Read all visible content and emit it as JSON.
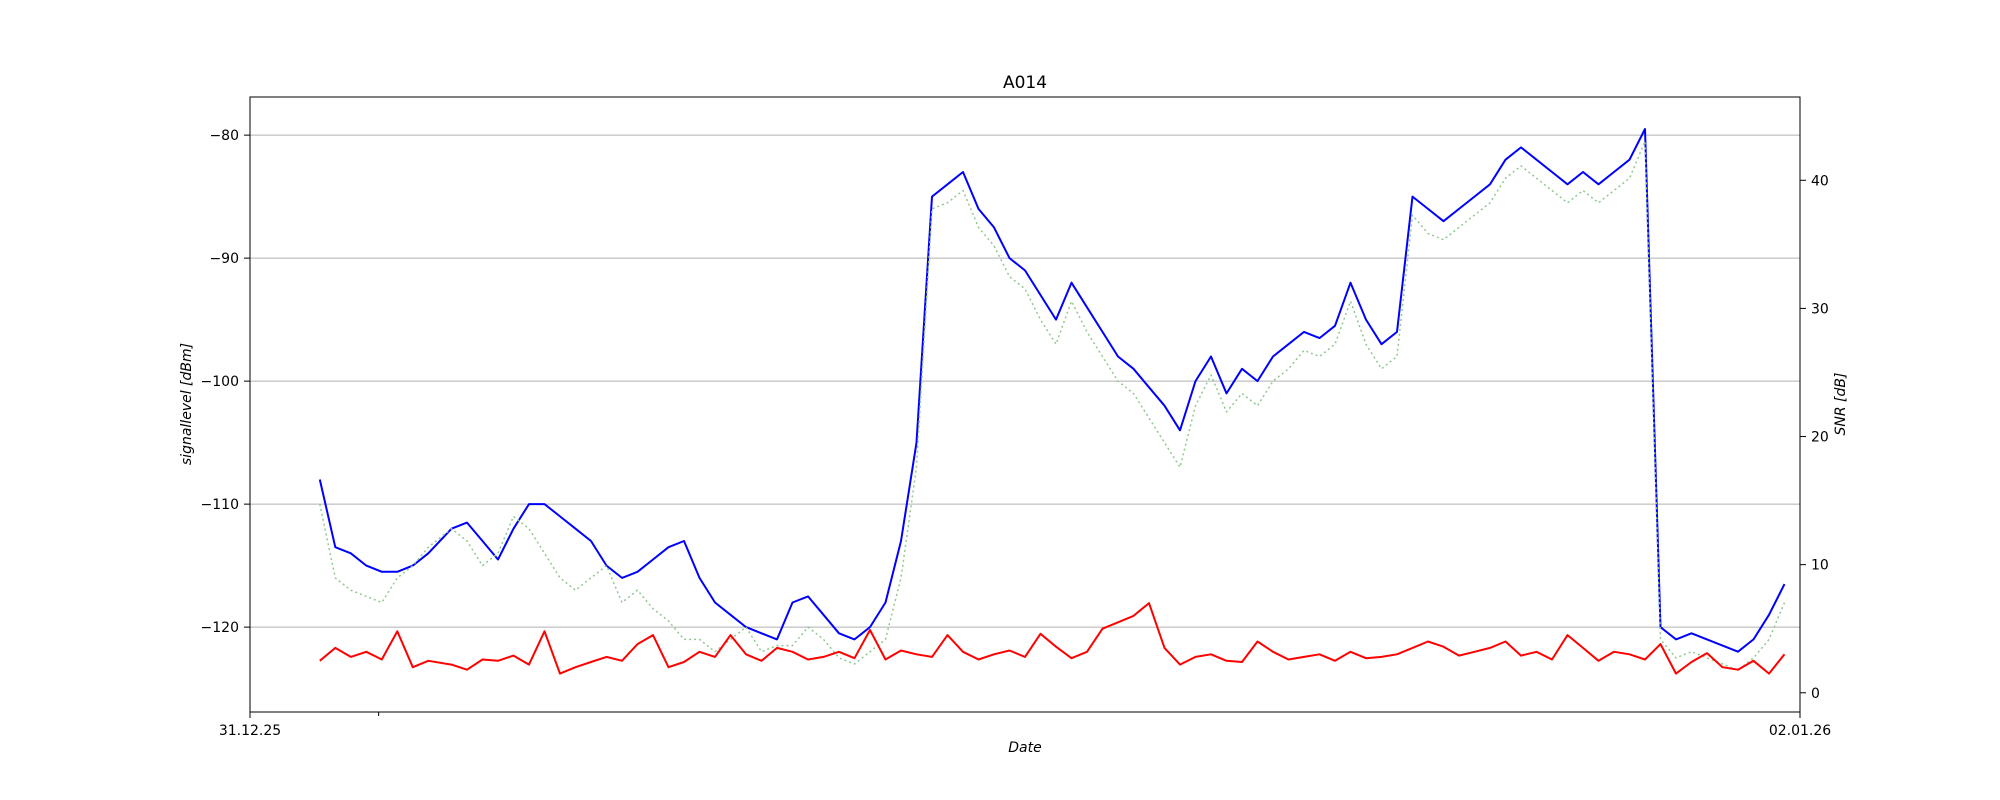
{
  "chart_data": {
    "type": "line",
    "title": "A014",
    "xlabel": "Date",
    "ylabel_left": "signallevel [dBm]",
    "ylabel_right": "SNR [dB]",
    "x_ticks": [
      "31.12.25",
      "02.01.26"
    ],
    "y_left_ticks": [
      -80,
      -90,
      -100,
      -110,
      -120
    ],
    "y_right_ticks": [
      40,
      30,
      20,
      10,
      0
    ],
    "y_left_range": [
      -126.9,
      -76.9
    ],
    "y_right_range": [
      -1.5,
      46.5
    ],
    "x_range": [
      0,
      100
    ],
    "grid": "horizontal (left axis)",
    "series": [
      {
        "axis": "left",
        "color": "#0000ff",
        "style": "solid",
        "x": [
          4.5,
          5.5,
          6.5,
          7.5,
          8.5,
          9.5,
          10.5,
          11.5,
          13,
          14,
          15,
          16,
          17,
          18,
          19,
          20,
          21,
          22,
          23,
          24,
          25,
          26,
          27,
          28,
          29,
          30,
          31,
          32,
          33,
          34,
          35,
          36,
          37,
          38,
          39,
          40,
          41,
          42,
          43,
          44,
          45,
          46,
          47,
          48,
          49,
          50,
          51,
          52,
          53,
          54,
          55,
          56,
          57,
          58,
          59,
          60,
          61,
          62,
          63,
          64,
          65,
          66,
          67,
          68,
          69,
          70,
          71,
          72,
          73,
          74,
          75,
          76,
          77,
          78,
          79,
          80,
          81,
          82,
          83,
          84,
          85,
          86,
          87,
          88,
          89,
          90,
          91,
          92,
          93,
          94,
          95,
          96,
          97,
          98,
          99
        ],
        "y": [
          -108,
          -113.5,
          -114,
          -115,
          -115.5,
          -115.5,
          -115,
          -114,
          -112,
          -111.5,
          -113,
          -114.5,
          -112,
          -110,
          -110,
          -111,
          -112,
          -113,
          -115,
          -116,
          -115.5,
          -114.5,
          -113.5,
          -113,
          -116,
          -118,
          -119,
          -120,
          -120.5,
          -121,
          -118,
          -117.5,
          -119,
          -120.5,
          -121,
          -120,
          -118,
          -113,
          -105,
          -85,
          -84,
          -83,
          -86,
          -87.5,
          -90,
          -91,
          -93,
          -95,
          -92,
          -94,
          -96,
          -98,
          -99,
          -100.5,
          -102,
          -104,
          -100,
          -98,
          -101,
          -99,
          -100,
          -98,
          -97,
          -96,
          -96.5,
          -95.5,
          -92,
          -95,
          -97,
          -96,
          -85,
          -86,
          -87,
          -86,
          -85,
          -84,
          -82,
          -81,
          -82,
          -83,
          -84,
          -83,
          -84,
          -83,
          -82,
          -79.5,
          -120,
          -121,
          -120.5,
          -121,
          -121.5,
          -122,
          -121,
          -119,
          -116.5
        ]
      },
      {
        "axis": "left",
        "color": "#90c890",
        "style": "dotted",
        "x": [
          4.5,
          5.5,
          6.5,
          7.5,
          8.5,
          9.5,
          10.5,
          11.5,
          13,
          14,
          15,
          16,
          17,
          18,
          19,
          20,
          21,
          22,
          23,
          24,
          25,
          26,
          27,
          28,
          29,
          30,
          31,
          32,
          33,
          34,
          35,
          36,
          37,
          38,
          39,
          40,
          41,
          42,
          43,
          44,
          45,
          46,
          47,
          48,
          49,
          50,
          51,
          52,
          53,
          54,
          55,
          56,
          57,
          58,
          59,
          60,
          61,
          62,
          63,
          64,
          65,
          66,
          67,
          68,
          69,
          70,
          71,
          72,
          73,
          74,
          75,
          76,
          77,
          78,
          79,
          80,
          81,
          82,
          83,
          84,
          85,
          86,
          87,
          88,
          89,
          90,
          91,
          92,
          93,
          94,
          95,
          96,
          97,
          98,
          99
        ],
        "y": [
          -110,
          -116,
          -117,
          -117.5,
          -118,
          -116,
          -115,
          -113.5,
          -112,
          -113,
          -115,
          -114,
          -111,
          -112,
          -114,
          -116,
          -117,
          -116,
          -115,
          -118,
          -117,
          -118.5,
          -119.5,
          -121,
          -121,
          -122,
          -121,
          -120,
          -122,
          -121.5,
          -121.5,
          -120,
          -121,
          -122.5,
          -123,
          -122,
          -121,
          -116,
          -107,
          -86,
          -85.5,
          -84.5,
          -87.5,
          -89,
          -91.5,
          -92.5,
          -95,
          -97,
          -93.5,
          -96,
          -98,
          -100,
          -101,
          -103,
          -105,
          -107,
          -102,
          -99.5,
          -102.5,
          -101,
          -102,
          -100,
          -99,
          -97.5,
          -98,
          -97,
          -93.5,
          -97,
          -99,
          -98,
          -86.5,
          -88,
          -88.5,
          -87.5,
          -86.5,
          -85.5,
          -83.5,
          -82.5,
          -83.5,
          -84.5,
          -85.5,
          -84.5,
          -85.5,
          -84.5,
          -83.5,
          -80.5,
          -121,
          -122.5,
          -122,
          -122.5,
          -123,
          -123.5,
          -122.5,
          -121,
          -118
        ]
      },
      {
        "axis": "right",
        "color": "#ff0000",
        "style": "solid",
        "x": [
          4.5,
          5.5,
          6.5,
          7.5,
          8.5,
          9.5,
          10.5,
          11.5,
          13,
          14,
          15,
          16,
          17,
          18,
          19,
          20,
          21,
          22,
          23,
          24,
          25,
          26,
          27,
          28,
          29,
          30,
          31,
          32,
          33,
          34,
          35,
          36,
          37,
          38,
          39,
          40,
          41,
          42,
          43,
          44,
          45,
          46,
          47,
          48,
          49,
          50,
          51,
          52,
          53,
          54,
          55,
          56,
          57,
          58,
          59,
          60,
          61,
          62,
          63,
          64,
          65,
          66,
          67,
          68,
          69,
          70,
          71,
          72,
          73,
          74,
          75,
          76,
          77,
          78,
          79,
          80,
          81,
          82,
          83,
          84,
          85,
          86,
          87,
          88,
          89,
          90,
          91,
          92,
          93,
          94,
          95,
          96,
          97,
          98,
          99
        ],
        "y": [
          2.5,
          3.5,
          2.8,
          3.2,
          2.6,
          4.8,
          2,
          2.5,
          2.2,
          1.8,
          2.6,
          2.5,
          2.9,
          2.2,
          4.8,
          1.5,
          2,
          2.4,
          2.8,
          2.5,
          3.8,
          4.5,
          2,
          2.4,
          3.2,
          2.8,
          4.5,
          3,
          2.5,
          3.5,
          3.2,
          2.6,
          2.8,
          3.2,
          2.7,
          4.9,
          2.6,
          3.3,
          3,
          2.8,
          4.5,
          3.2,
          2.6,
          3,
          3.3,
          2.8,
          4.6,
          3.6,
          2.7,
          3.2,
          5,
          5.5,
          6,
          7,
          3.5,
          2.2,
          2.8,
          3,
          2.5,
          2.4,
          4,
          3.2,
          2.6,
          2.8,
          3,
          2.5,
          3.2,
          2.7,
          2.8,
          3,
          3.5,
          4,
          3.6,
          2.9,
          3.2,
          3.5,
          4,
          2.9,
          3.2,
          2.6,
          4.5,
          3.5,
          2.5,
          3.2,
          3,
          2.6,
          3.8,
          1.5,
          2.4,
          3.1,
          2,
          1.8,
          2.5,
          1.5,
          3
        ]
      }
    ]
  }
}
